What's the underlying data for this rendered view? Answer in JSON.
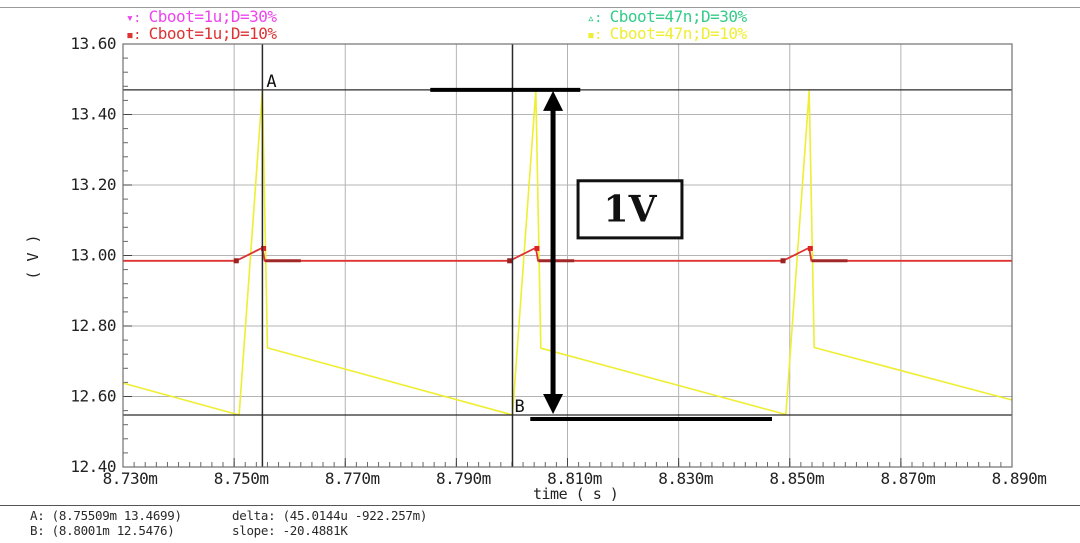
{
  "legend": {
    "items": [
      {
        "marker": "▾:",
        "label": "Cboot=1u;D=30%",
        "color": "#ee44ee"
      },
      {
        "marker": "▪:",
        "label": "Cboot=1u;D=10%",
        "color": "#dd3333"
      },
      {
        "marker": "▵:",
        "label": "Cboot=47n;D=30%",
        "color": "#33cc88"
      },
      {
        "marker": "▪:",
        "label": "Cboot=47n;D=10%",
        "color": "#eeee33"
      }
    ]
  },
  "axis": {
    "x_title": "time ( s )",
    "y_title": "( V )"
  },
  "readout": {
    "a": "A: (8.75509m 13.4699)",
    "b": "B: (8.8001m 12.5476)",
    "delta": "delta: (45.0144u -922.257m)",
    "slope": "slope: -20.4881K"
  },
  "chart_data": {
    "type": "line",
    "title": "",
    "xlabel": "time ( s )",
    "ylabel": "( V )",
    "x_unit": "ms",
    "xlim": [
      8.73,
      8.89
    ],
    "ylim": [
      12.4,
      13.6
    ],
    "grid": true,
    "legend_position": "top",
    "x_ticks": [
      {
        "v": 8.73,
        "label": "8.730m"
      },
      {
        "v": 8.75,
        "label": "8.750m"
      },
      {
        "v": 8.77,
        "label": "8.770m"
      },
      {
        "v": 8.79,
        "label": "8.790m"
      },
      {
        "v": 8.81,
        "label": "8.810m"
      },
      {
        "v": 8.83,
        "label": "8.830m"
      },
      {
        "v": 8.85,
        "label": "8.850m"
      },
      {
        "v": 8.87,
        "label": "8.870m"
      },
      {
        "v": 8.89,
        "label": "8.890m"
      }
    ],
    "y_ticks": [
      {
        "v": 13.6,
        "label": "13.60"
      },
      {
        "v": 13.4,
        "label": "13.40"
      },
      {
        "v": 13.2,
        "label": "13.20"
      },
      {
        "v": 13.0,
        "label": "13.00"
      },
      {
        "v": 12.8,
        "label": "12.80"
      },
      {
        "v": 12.6,
        "label": "12.60"
      },
      {
        "v": 12.4,
        "label": "12.40"
      }
    ],
    "x_minor_step": 0.002,
    "y_minor_step": 0.04,
    "series": [
      {
        "name": "Cboot=47n;D=10%",
        "color": "#eeee33",
        "width": 1.6,
        "points": [
          [
            8.73,
            12.638
          ],
          [
            8.7509,
            12.5476
          ],
          [
            8.75509,
            13.4699
          ],
          [
            8.756,
            12.738
          ],
          [
            8.8001,
            12.5476
          ],
          [
            8.8043,
            13.468
          ],
          [
            8.8052,
            12.737
          ],
          [
            8.8493,
            12.549
          ],
          [
            8.8535,
            13.467
          ],
          [
            8.8544,
            12.739
          ],
          [
            8.89,
            12.59
          ]
        ]
      },
      {
        "name": "Cboot=1u;D=10%",
        "color": "#dd3333",
        "width": 1.8,
        "points": [
          [
            8.73,
            12.985
          ],
          [
            8.75039,
            12.985
          ],
          [
            8.75509,
            13.022
          ],
          [
            8.75549,
            12.985
          ],
          [
            8.79959,
            12.985
          ],
          [
            8.8043,
            13.022
          ],
          [
            8.8047,
            12.985
          ],
          [
            8.84879,
            12.985
          ],
          [
            8.85349,
            13.022
          ],
          [
            8.85389,
            12.985
          ],
          [
            8.89,
            12.985
          ]
        ]
      },
      {
        "name": "overlap-dark-red",
        "color": "#a02828",
        "width": 3,
        "paths": [
          [
            [
              8.7556,
              12.985
            ],
            [
              8.762,
              12.985
            ]
          ],
          [
            [
              8.8048,
              12.985
            ],
            [
              8.8112,
              12.985
            ]
          ],
          [
            [
              8.854,
              12.985
            ],
            [
              8.8604,
              12.985
            ]
          ]
        ]
      }
    ],
    "marker_groups": [
      {
        "color": "#dd2222",
        "size": 5,
        "points": [
          [
            8.7553,
            13.02
          ],
          [
            8.8045,
            13.02
          ],
          [
            8.8537,
            13.02
          ]
        ]
      },
      {
        "color": "#992222",
        "size": 5,
        "points": [
          [
            8.75039,
            12.985
          ],
          [
            8.79959,
            12.985
          ],
          [
            8.84879,
            12.985
          ]
        ]
      }
    ],
    "cursors": {
      "a": {
        "label": "A",
        "x": 8.75509,
        "y": 13.4699
      },
      "b": {
        "label": "B",
        "x": 8.8001,
        "y": 12.5476
      }
    },
    "annotations": {
      "top_bar": {
        "x1": 8.7853,
        "x2": 8.8123,
        "y": 13.4699
      },
      "bottom_bar": {
        "x1": 8.8033,
        "x2": 8.8468,
        "y": 12.536
      },
      "arrow": {
        "x": 8.8074,
        "y1": 13.4699,
        "y2": 12.5476
      },
      "label_box": {
        "text": "1V",
        "x1": 8.8119,
        "x2": 8.8306,
        "y1": 13.212,
        "y2": 13.05
      }
    }
  }
}
